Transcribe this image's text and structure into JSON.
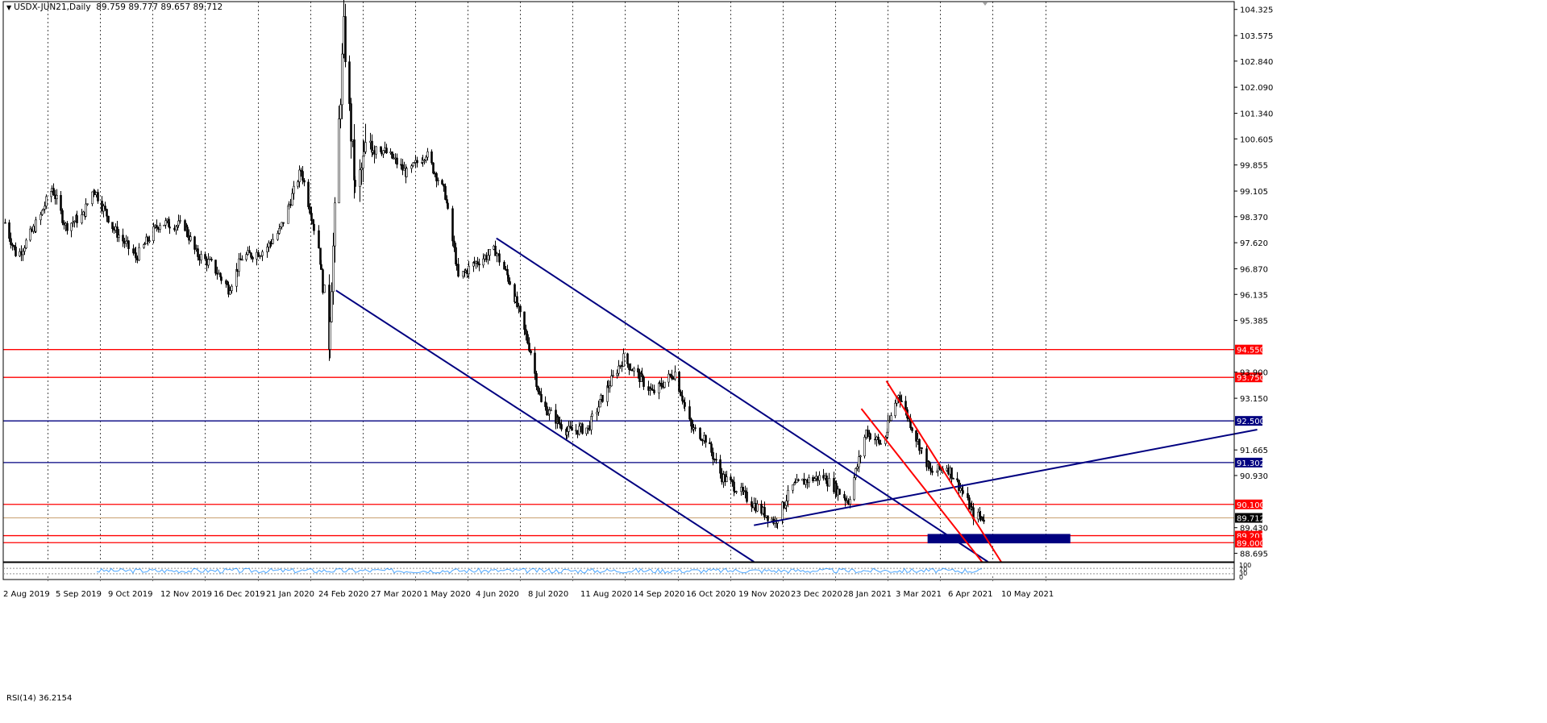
{
  "header": {
    "symbol": "USDX-JUN21",
    "timeframe": "Daily",
    "ohlc": "89.759 89.777 89.657 89.712"
  },
  "rsi_label": "RSI(14) 36.2154",
  "chart_data": {
    "type": "candlestick",
    "symbol": "USDX-JUN21,Daily",
    "ylim": [
      88.45,
      104.55
    ],
    "y_ticks": [
      "104.325",
      "103.575",
      "102.840",
      "102.090",
      "101.340",
      "100.605",
      "99.855",
      "99.105",
      "98.370",
      "97.620",
      "96.870",
      "96.135",
      "95.385",
      "94.550",
      "93.900",
      "93.150",
      "92.500",
      "91.665",
      "91.302",
      "90.930",
      "90.100",
      "89.712",
      "89.430",
      "89.201",
      "89.000",
      "88.695"
    ],
    "x_ticks": [
      "2 Aug 2019",
      "5 Sep 2019",
      "9 Oct 2019",
      "12 Nov 2019",
      "16 Dec 2019",
      "21 Jan 2020",
      "24 Feb 2020",
      "27 Mar 2020",
      "1 May 2020",
      "4 Jun 2020",
      "8 Jul 2020",
      "11 Aug 2020",
      "14 Sep 2020",
      "16 Oct 2020",
      "19 Nov 2020",
      "23 Dec 2020",
      "28 Jan 2021",
      "3 Mar 2021",
      "6 Apr 2021",
      "10 May 2021"
    ],
    "price_anchors": [
      [
        "2019-08-02",
        98.2
      ],
      [
        "2019-08-10",
        97.2
      ],
      [
        "2019-08-25",
        98.3
      ],
      [
        "2019-09-03",
        99.2
      ],
      [
        "2019-09-12",
        98.1
      ],
      [
        "2019-09-24",
        98.4
      ],
      [
        "2019-10-01",
        99.2
      ],
      [
        "2019-10-15",
        98.0
      ],
      [
        "2019-10-30",
        97.2
      ],
      [
        "2019-11-15",
        98.2
      ],
      [
        "2019-12-02",
        98.1
      ],
      [
        "2019-12-10",
        97.3
      ],
      [
        "2019-12-20",
        97.0
      ],
      [
        "2020-01-01",
        96.3
      ],
      [
        "2020-01-10",
        97.2
      ],
      [
        "2020-01-25",
        97.4
      ],
      [
        "2020-02-05",
        98.0
      ],
      [
        "2020-02-19",
        99.7
      ],
      [
        "2020-03-02",
        97.5
      ],
      [
        "2020-03-09",
        94.8
      ],
      [
        "2020-03-19",
        103.7
      ],
      [
        "2020-03-27",
        99.0
      ],
      [
        "2020-04-05",
        100.6
      ],
      [
        "2020-04-20",
        100.1
      ],
      [
        "2020-05-01",
        99.6
      ],
      [
        "2020-05-14",
        100.2
      ],
      [
        "2020-05-27",
        99.0
      ],
      [
        "2020-06-05",
        96.6
      ],
      [
        "2020-06-15",
        97.0
      ],
      [
        "2020-06-30",
        97.4
      ],
      [
        "2020-07-10",
        96.5
      ],
      [
        "2020-07-24",
        94.5
      ],
      [
        "2020-07-31",
        93.0
      ],
      [
        "2020-08-18",
        92.2
      ],
      [
        "2020-09-01",
        92.3
      ],
      [
        "2020-09-10",
        93.1
      ],
      [
        "2020-09-25",
        94.3
      ],
      [
        "2020-10-05",
        93.8
      ],
      [
        "2020-10-15",
        93.3
      ],
      [
        "2020-10-30",
        93.9
      ],
      [
        "2020-11-10",
        92.3
      ],
      [
        "2020-11-20",
        92.0
      ],
      [
        "2020-12-01",
        90.9
      ],
      [
        "2020-12-10",
        90.6
      ],
      [
        "2020-12-20",
        90.2
      ],
      [
        "2021-01-06",
        89.6
      ],
      [
        "2021-01-18",
        90.6
      ],
      [
        "2021-01-28",
        90.8
      ],
      [
        "2021-02-08",
        90.9
      ],
      [
        "2021-02-25",
        90.2
      ],
      [
        "2021-03-09",
        92.2
      ],
      [
        "2021-03-20",
        91.8
      ],
      [
        "2021-03-31",
        93.3
      ],
      [
        "2021-04-12",
        92.0
      ],
      [
        "2021-04-22",
        91.0
      ],
      [
        "2021-05-03",
        91.2
      ],
      [
        "2021-05-13",
        90.5
      ],
      [
        "2021-05-21",
        89.8
      ],
      [
        "2021-05-28",
        89.712
      ]
    ],
    "horizontal_levels": [
      {
        "value": 94.55,
        "label": "94.550",
        "color": "#ff0000"
      },
      {
        "value": 93.75,
        "label": "93.750",
        "color": "#ff0000"
      },
      {
        "value": 92.5,
        "label": "92.500",
        "color": "#000080"
      },
      {
        "value": 91.302,
        "label": "91.302",
        "color": "#000080"
      },
      {
        "value": 90.1,
        "label": "90.100",
        "color": "#ff0000"
      },
      {
        "value": 89.201,
        "label": "89.201",
        "color": "#ff0000"
      },
      {
        "value": 89.0,
        "label": "89.000",
        "color": "#ff0000"
      }
    ],
    "current_price": {
      "value": 89.712,
      "label": "89.712"
    },
    "trendlines": [
      {
        "color": "#000080",
        "from": [
          "2020-07-01",
          97.75
        ],
        "to": [
          "2021-05-31",
          88.45
        ]
      },
      {
        "color": "#000080",
        "from": [
          "2020-03-14",
          96.25
        ],
        "to": [
          "2020-12-23",
          88.45
        ]
      },
      {
        "color": "#000080",
        "from": [
          "2020-12-23",
          89.5
        ],
        "to": [
          "2021-11-30",
          92.25
        ]
      },
      {
        "color": "#ff0000",
        "from": [
          "2021-03-23",
          93.65
        ],
        "to": [
          "2021-06-09",
          88.45
        ]
      },
      {
        "color": "#ff0000",
        "from": [
          "2021-03-06",
          92.85
        ],
        "to": [
          "2021-05-27",
          88.45
        ]
      }
    ],
    "zone": {
      "color": "#00007f",
      "x_from": "2021-04-20",
      "x_to": "2021-07-26",
      "y_from": 89.25,
      "y_to": 88.98
    },
    "rsi": {
      "period": 14,
      "value": 36.2154,
      "levels": [
        "100",
        "70",
        "30",
        "0"
      ]
    },
    "colors": {
      "candles": "#000000",
      "support": "#000080",
      "resistance": "#ff0000",
      "grid": "#000000"
    }
  }
}
